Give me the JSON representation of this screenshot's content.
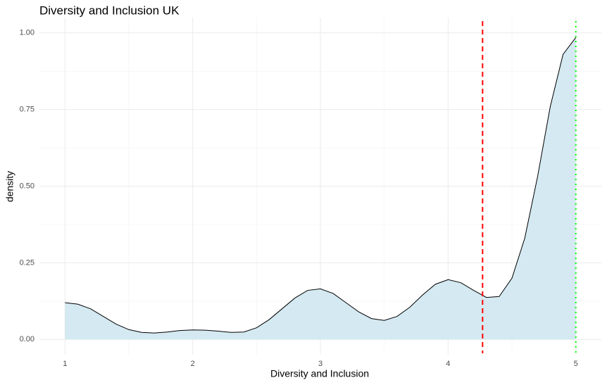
{
  "chart_data": {
    "type": "density",
    "title": "Diversity and Inclusion UK",
    "x_label": "Diversity and Inclusion",
    "y_label": "density",
    "x": [
      1.0,
      1.1,
      1.2,
      1.3,
      1.4,
      1.5,
      1.6,
      1.7,
      1.8,
      1.9,
      2.0,
      2.1,
      2.2,
      2.3,
      2.4,
      2.5,
      2.6,
      2.7,
      2.8,
      2.9,
      3.0,
      3.1,
      3.2,
      3.3,
      3.4,
      3.5,
      3.6,
      3.7,
      3.8,
      3.9,
      4.0,
      4.1,
      4.2,
      4.3,
      4.4,
      4.5,
      4.6,
      4.7,
      4.8,
      4.9,
      5.0
    ],
    "values": [
      0.12,
      0.115,
      0.1,
      0.075,
      0.05,
      0.032,
      0.023,
      0.021,
      0.024,
      0.029,
      0.031,
      0.03,
      0.027,
      0.023,
      0.024,
      0.038,
      0.065,
      0.1,
      0.135,
      0.16,
      0.165,
      0.15,
      0.12,
      0.09,
      0.068,
      0.062,
      0.075,
      0.105,
      0.145,
      0.18,
      0.195,
      0.185,
      0.16,
      0.137,
      0.14,
      0.2,
      0.33,
      0.53,
      0.76,
      0.93,
      0.985
    ],
    "fill": "#d4e9f1",
    "color": "#000000",
    "vlines": [
      {
        "x": 4.27,
        "color": "#ff0000",
        "style": "dashed"
      },
      {
        "x": 5,
        "color": "#00ff00",
        "style": "dotted"
      }
    ],
    "xlim": [
      0.8,
      5.2
    ],
    "ylim": [
      -0.05,
      1.05
    ],
    "xticks": [
      1,
      2,
      3,
      4,
      5
    ],
    "yticks": [
      {
        "value": 0,
        "label": "0.00"
      },
      {
        "value": 0.25,
        "label": "0.25"
      },
      {
        "value": 0.5,
        "label": "0.50"
      },
      {
        "value": 0.75,
        "label": "0.75"
      },
      {
        "value": 1,
        "label": "1.00"
      }
    ],
    "grid": true
  }
}
